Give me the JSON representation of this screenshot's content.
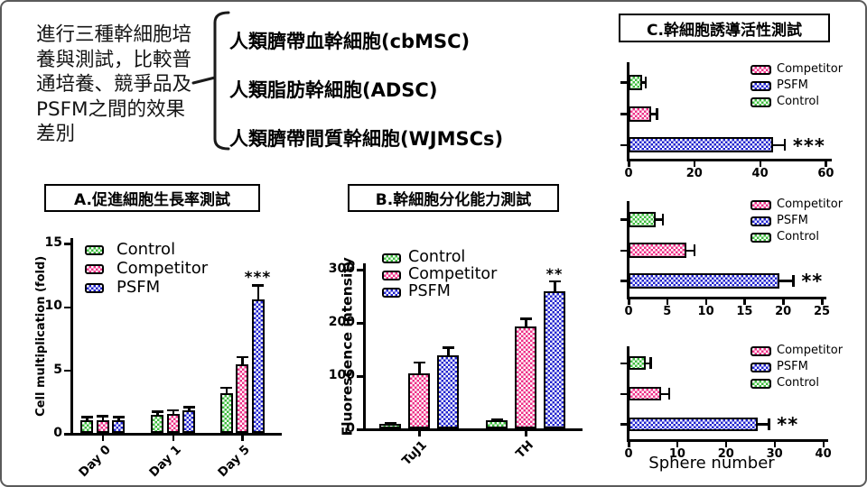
{
  "intro": {
    "text": "進行三種幹細胞培養與測試，比較普通培養、競爭品及PSFM之間的效果差別",
    "cell_types": [
      "人類臍帶血幹細胞(cbMSC)",
      "人類脂肪幹細胞(ADSC)",
      "人類臍帶間質幹細胞(WJMSCs)"
    ]
  },
  "panels": {
    "a": {
      "title": "A.促進細胞生長率測試"
    },
    "b": {
      "title": "B.幹細胞分化能力測試"
    },
    "c": {
      "title": "C.幹細胞誘導活性測試"
    }
  },
  "colors": {
    "control": "#3FBC3F",
    "competitor": "#EE3087",
    "psfm": "#2023CE",
    "axis": "#000000",
    "slide_border": "#5A5A5A"
  },
  "chart_data": [
    {
      "id": "A",
      "type": "bar",
      "orientation": "vertical",
      "panel": "A.促進細胞生長率測試",
      "ylabel": "Cell multiplication (fold)",
      "ylim": [
        0,
        15
      ],
      "yticks": [
        0,
        5,
        10,
        15
      ],
      "categories": [
        "Day 0",
        "Day 1",
        "Day 5"
      ],
      "series": [
        {
          "name": "Control",
          "color": "control",
          "values": [
            1.0,
            1.4,
            3.1
          ],
          "errors": [
            0.35,
            0.35,
            0.55
          ]
        },
        {
          "name": "Competitor",
          "color": "competitor",
          "values": [
            1.0,
            1.5,
            5.4
          ],
          "errors": [
            0.4,
            0.35,
            0.65
          ]
        },
        {
          "name": "PSFM",
          "color": "psfm",
          "values": [
            1.0,
            1.75,
            10.5
          ],
          "errors": [
            0.35,
            0.35,
            1.2
          ]
        }
      ],
      "legend": [
        "Control",
        "Competitor",
        "PSFM"
      ],
      "annotation": {
        "text": "***",
        "series": "PSFM",
        "category": "Day 5"
      }
    },
    {
      "id": "B",
      "type": "bar",
      "orientation": "vertical",
      "panel": "B.幹細胞分化能力測試",
      "ylabel": "Fluorescence intensity",
      "ylim": [
        0,
        300
      ],
      "yticks": [
        0,
        100,
        200,
        300
      ],
      "categories": [
        "TuJ1",
        "TH"
      ],
      "series": [
        {
          "name": "Control",
          "color": "control",
          "values": [
            9,
            15
          ],
          "errors": [
            3,
            3.5
          ]
        },
        {
          "name": "Competitor",
          "color": "competitor",
          "values": [
            104,
            191
          ],
          "errors": [
            22,
            17
          ]
        },
        {
          "name": "PSFM",
          "color": "psfm",
          "values": [
            137,
            258
          ],
          "errors": [
            17,
            20
          ]
        }
      ],
      "legend": [
        "Control",
        "Competitor",
        "PSFM"
      ],
      "annotation": {
        "text": "**",
        "series": "PSFM",
        "category": "TH"
      }
    },
    {
      "id": "C1",
      "type": "bar",
      "orientation": "horizontal",
      "panel": "C.幹細胞誘導活性測試",
      "xlim": [
        0,
        60
      ],
      "xticks": [
        0,
        20,
        40,
        60
      ],
      "series": [
        {
          "name": "Control",
          "color": "control",
          "value": 4,
          "error": 1.2
        },
        {
          "name": "Competitor",
          "color": "competitor",
          "value": 7,
          "error": 1.6
        },
        {
          "name": "PSFM",
          "color": "psfm",
          "value": 44,
          "error": 3.5
        }
      ],
      "legend": [
        "Competitor",
        "PSFM",
        "Control"
      ],
      "annotation": {
        "text": "***",
        "series": "PSFM"
      }
    },
    {
      "id": "C2",
      "type": "bar",
      "orientation": "horizontal",
      "panel": "C.幹細胞誘導活性測試",
      "xlim": [
        0,
        25
      ],
      "xticks": [
        0,
        5,
        10,
        15,
        20,
        25
      ],
      "series": [
        {
          "name": "Control",
          "color": "control",
          "value": 3.5,
          "error": 0.9
        },
        {
          "name": "Competitor",
          "color": "competitor",
          "value": 7.5,
          "error": 1.0
        },
        {
          "name": "PSFM",
          "color": "psfm",
          "value": 19.5,
          "error": 1.8
        }
      ],
      "legend": [
        "Competitor",
        "PSFM",
        "Control"
      ],
      "annotation": {
        "text": "**",
        "series": "PSFM"
      }
    },
    {
      "id": "C3",
      "type": "bar",
      "orientation": "horizontal",
      "panel": "C.幹細胞誘導活性測試",
      "xlabel": "Sphere number",
      "xlim": [
        0,
        40
      ],
      "xticks": [
        0,
        10,
        20,
        30,
        40
      ],
      "series": [
        {
          "name": "Control",
          "color": "control",
          "value": 3.6,
          "error": 0.9
        },
        {
          "name": "Competitor",
          "color": "competitor",
          "value": 6.7,
          "error": 1.6
        },
        {
          "name": "PSFM",
          "color": "psfm",
          "value": 26.5,
          "error": 2.3
        }
      ],
      "legend": [
        "Competitor",
        "PSFM",
        "Control"
      ],
      "annotation": {
        "text": "**",
        "series": "PSFM"
      }
    }
  ]
}
